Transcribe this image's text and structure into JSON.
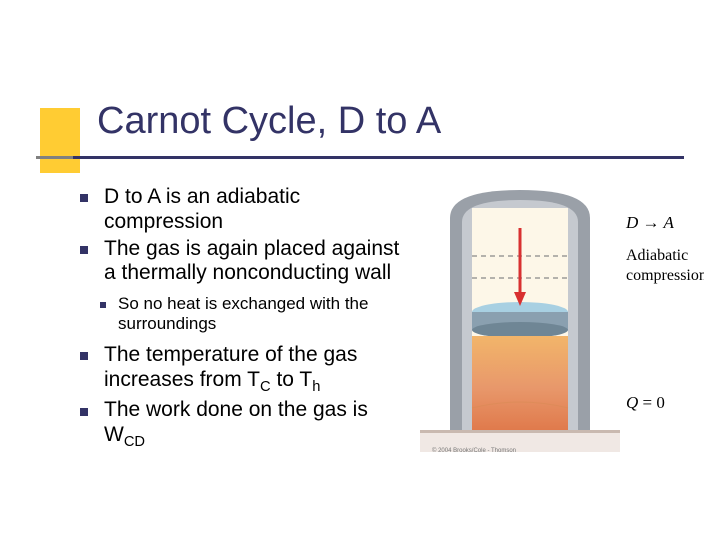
{
  "title": "Carnot Cycle, D to A",
  "bullets": [
    {
      "level": 1,
      "text": "D to A is an adiabatic compression"
    },
    {
      "level": 1,
      "text": "The gas is again placed against a thermally nonconducting wall"
    },
    {
      "level": 2,
      "text": "So no heat is exchanged with the surroundings"
    },
    {
      "level": 1,
      "html": "The temperature of the gas increases from T<sub>C</sub> to T<sub>h</sub>"
    },
    {
      "level": 1,
      "html": "The work done on the gas is W<sub>CD</sub>"
    }
  ],
  "figure": {
    "label_top": "D → A",
    "label_mid": "Adiabatic",
    "label_mid2": "compression",
    "label_bottom_var": "Q",
    "label_bottom_eq": " = 0",
    "colors": {
      "frame_outer": "#9aa0a8",
      "frame_inner": "#c5c9cf",
      "cylinder_light": "#fdf7e8",
      "piston_top": "#a8d0e2",
      "piston_mid": "#8aa0b0",
      "gas_top": "#f2b56a",
      "gas_mid": "#e8986b",
      "gas_bottom": "#e07a4c",
      "arrow": "#d83030",
      "base": "#f0e8e4",
      "base_edge": "#c9b9b0",
      "text": "#000000"
    }
  },
  "accent_color": "#ffcc33",
  "bar_color": "#333366",
  "copyright": "© 2004 Brooks/Cole - Thomson"
}
